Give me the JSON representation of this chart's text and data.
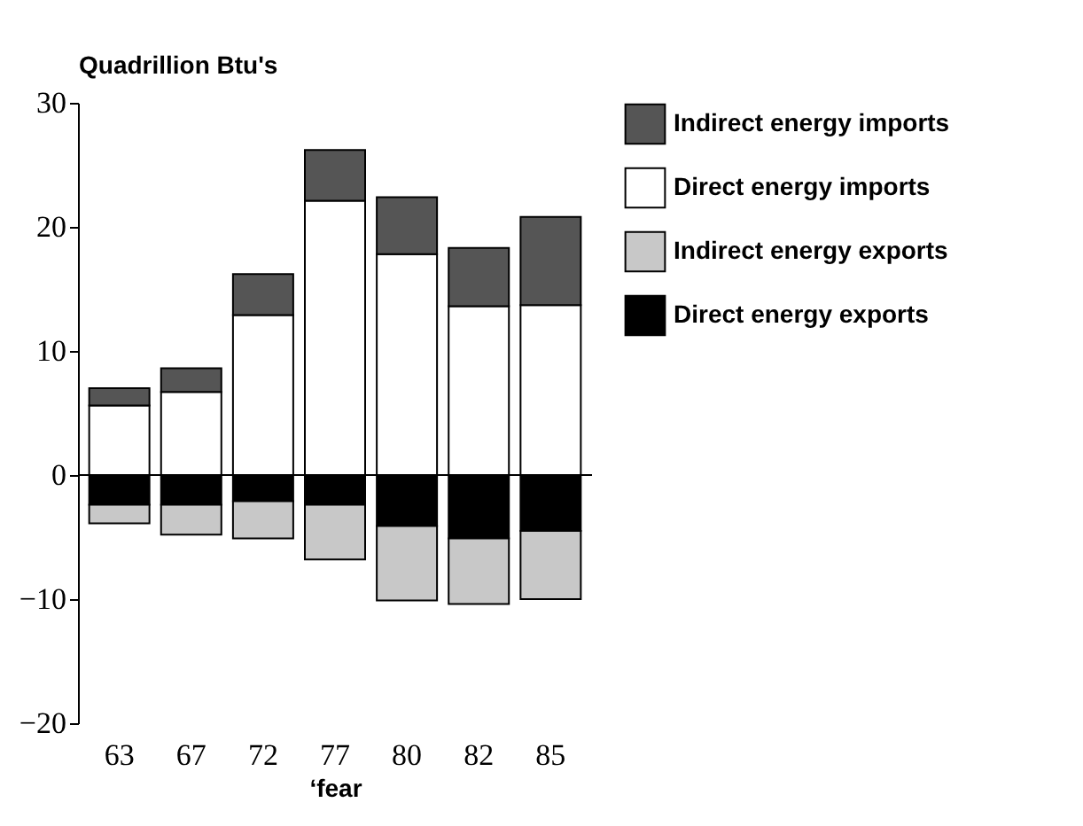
{
  "chart_data": {
    "type": "bar",
    "stacked": true,
    "ylabel": "Quadrillion Btu's",
    "xlabel": "‘fear",
    "categories": [
      "63",
      "67",
      "72",
      "77",
      "80",
      "82",
      "85"
    ],
    "series": [
      {
        "name": "Direct energy imports",
        "color": "#ffffff",
        "values": [
          5.6,
          6.7,
          12.9,
          22.1,
          17.8,
          13.6,
          13.7
        ]
      },
      {
        "name": "Indirect energy imports",
        "color": "#555555",
        "values": [
          1.4,
          1.9,
          3.3,
          4.1,
          4.6,
          4.7,
          7.1
        ]
      },
      {
        "name": "Direct energy exports",
        "color": "#000000",
        "values": [
          -2.4,
          -2.4,
          -2.1,
          -2.4,
          -4.1,
          -5.1,
          -4.5
        ]
      },
      {
        "name": "Indirect energy exports",
        "color": "#c8c8c8",
        "values": [
          -1.5,
          -2.4,
          -3.0,
          -4.4,
          -6.0,
          -5.3,
          -5.5
        ]
      }
    ],
    "ylim": [
      -20,
      30
    ],
    "yticks": [
      -20,
      -10,
      0,
      10,
      20,
      30
    ],
    "grid": false,
    "legend": "right",
    "ref_lines": [
      {
        "axis": "y",
        "value": 0
      }
    ]
  }
}
